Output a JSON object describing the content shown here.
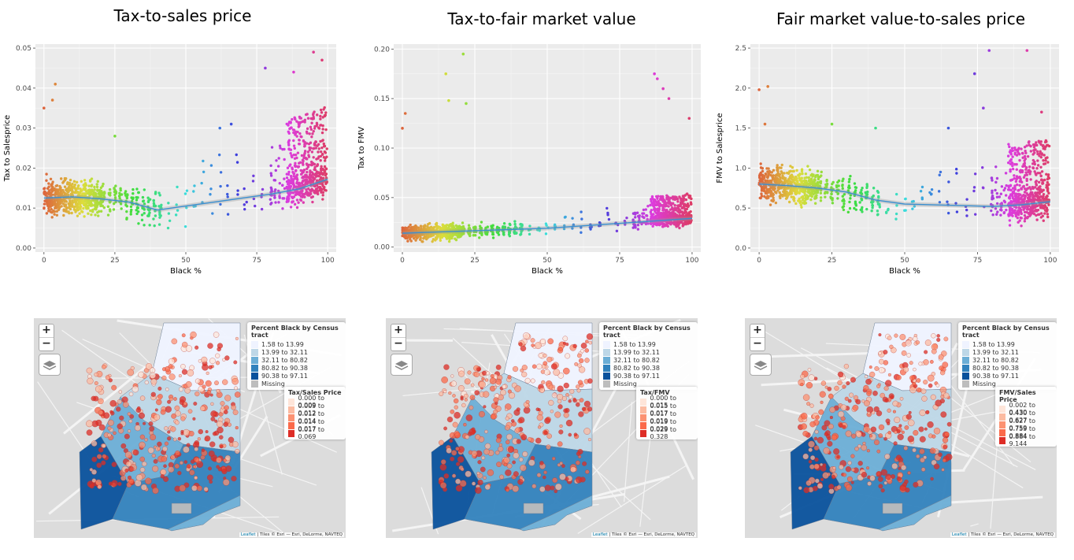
{
  "charts": [
    {
      "title": "Tax-to-sales price",
      "xlabel": "Black %",
      "ylabel": "Tax to Salesprice",
      "yticks": [
        "0.00",
        "0.01",
        "0.02",
        "0.03",
        "0.04",
        "0.05"
      ],
      "xticks": [
        "0",
        "25",
        "50",
        "75",
        "100"
      ]
    },
    {
      "title": "Tax-to-fair market value",
      "xlabel": "Black %",
      "ylabel": "Tax to FMV",
      "yticks": [
        "0.00",
        "0.05",
        "0.10",
        "0.15",
        "0.20"
      ],
      "xticks": [
        "0",
        "25",
        "50",
        "75",
        "100"
      ]
    },
    {
      "title": "Fair market value-to-sales price",
      "xlabel": "Black %",
      "ylabel": "FMV to Salesprice",
      "yticks": [
        "0.0",
        "0.5",
        "1.0",
        "1.5",
        "2.0",
        "2.5"
      ],
      "xticks": [
        "0",
        "25",
        "50",
        "75",
        "100"
      ]
    }
  ],
  "chart_data": [
    {
      "type": "scatter",
      "title": "Tax-to-sales price",
      "xlabel": "Black %",
      "ylabel": "Tax to Salesprice",
      "xlim": [
        -3,
        103
      ],
      "ylim": [
        -0.001,
        0.051
      ],
      "trend": {
        "x": [
          0,
          10,
          20,
          30,
          40,
          50,
          60,
          70,
          80,
          90,
          100
        ],
        "y": [
          0.0125,
          0.0128,
          0.0123,
          0.0115,
          0.0095,
          0.0105,
          0.0115,
          0.0125,
          0.0135,
          0.0148,
          0.0172
        ]
      },
      "outliers": {
        "x": [
          0,
          3,
          4,
          25,
          62,
          66,
          78,
          88,
          95,
          98
        ],
        "y": [
          0.035,
          0.037,
          0.041,
          0.028,
          0.03,
          0.031,
          0.045,
          0.044,
          0.049,
          0.047
        ]
      }
    },
    {
      "type": "scatter",
      "title": "Tax-to-fair market value",
      "xlabel": "Black %",
      "ylabel": "Tax to FMV",
      "xlim": [
        -3,
        103
      ],
      "ylim": [
        -0.005,
        0.205
      ],
      "trend": {
        "x": [
          0,
          10,
          20,
          30,
          40,
          50,
          60,
          70,
          80,
          90,
          100
        ],
        "y": [
          0.014,
          0.015,
          0.016,
          0.017,
          0.018,
          0.019,
          0.021,
          0.023,
          0.025,
          0.027,
          0.029
        ]
      },
      "outliers": {
        "x": [
          0,
          1,
          15,
          16,
          21,
          22,
          87,
          88,
          90,
          92,
          99
        ],
        "y": [
          0.12,
          0.135,
          0.175,
          0.148,
          0.195,
          0.145,
          0.175,
          0.17,
          0.16,
          0.15,
          0.13
        ]
      }
    },
    {
      "type": "scatter",
      "title": "Fair market value-to-sales price",
      "xlabel": "Black %",
      "ylabel": "FMV to Salesprice",
      "xlim": [
        -3,
        103
      ],
      "ylim": [
        -0.05,
        2.55
      ],
      "trend": {
        "x": [
          0,
          10,
          20,
          30,
          40,
          50,
          60,
          70,
          80,
          90,
          100
        ],
        "y": [
          0.8,
          0.78,
          0.75,
          0.7,
          0.6,
          0.55,
          0.54,
          0.53,
          0.52,
          0.54,
          0.58
        ]
      },
      "outliers": {
        "x": [
          0,
          3,
          2,
          25,
          40,
          65,
          74,
          77,
          79,
          92,
          97
        ],
        "y": [
          1.98,
          2.02,
          1.55,
          1.55,
          1.5,
          1.5,
          2.18,
          1.75,
          2.47,
          2.47,
          1.7
        ]
      }
    }
  ],
  "maps": [
    {
      "legend1": {
        "title": "Percent Black by Census tract",
        "items": [
          "1.58 to 13.99",
          "13.99 to 32.11",
          "32.11 to 80.82",
          "80.82 to 90.38",
          "90.38 to 97.11",
          "Missing"
        ],
        "colors": [
          "#eff3ff",
          "#bdd7e7",
          "#6baed6",
          "#3182bd",
          "#08519c",
          "#bdbdbd"
        ]
      },
      "legend2": {
        "title": "Tax/Sales Price",
        "items": [
          "0.000 to 0.009",
          "0.009 to 0.012",
          "0.012 to 0.014",
          "0.014 to 0.017",
          "0.017 to 0.069"
        ],
        "colors": [
          "#fee5d9",
          "#fcbba1",
          "#fc9272",
          "#fb6a4a",
          "#de2d26"
        ]
      }
    },
    {
      "legend1": {
        "title": "Percent Black by Census tract",
        "items": [
          "1.58 to 13.99",
          "13.99 to 32.11",
          "32.11 to 80.82",
          "80.82 to 90.38",
          "90.38 to 97.11",
          "Missing"
        ],
        "colors": [
          "#eff3ff",
          "#bdd7e7",
          "#6baed6",
          "#3182bd",
          "#08519c",
          "#bdbdbd"
        ]
      },
      "legend2": {
        "title": "Tax/FMV",
        "items": [
          "0.000 to 0.015",
          "0.015 to 0.017",
          "0.017 to 0.019",
          "0.019 to 0.029",
          "0.029 to 0.328"
        ],
        "colors": [
          "#fee5d9",
          "#fcbba1",
          "#fc9272",
          "#fb6a4a",
          "#de2d26"
        ]
      }
    },
    {
      "legend1": {
        "title": "Percent Black by Census tract",
        "items": [
          "1.58 to 13.99",
          "13.99 to 32.11",
          "32.11 to 80.82",
          "80.82 to 90.38",
          "90.38 to 97.11",
          "Missing"
        ],
        "colors": [
          "#eff3ff",
          "#bdd7e7",
          "#6baed6",
          "#3182bd",
          "#08519c",
          "#bdbdbd"
        ]
      },
      "legend2": {
        "title": "FMV/Sales Price",
        "items": [
          "0.002 to 0.430",
          "0.430 to 0.627",
          "0.627 to 0.759",
          "0.759 to 0.884",
          "0.884 to 9.144"
        ],
        "colors": [
          "#fee5d9",
          "#fcbba1",
          "#fc9272",
          "#fb6a4a",
          "#de2d26"
        ]
      }
    }
  ],
  "map_ui": {
    "zoom_in": "+",
    "zoom_out": "−",
    "attribution_link": "Leaflet",
    "attribution_text": " | Tiles © Esri — Esri, DeLorme, NAVTEQ"
  }
}
